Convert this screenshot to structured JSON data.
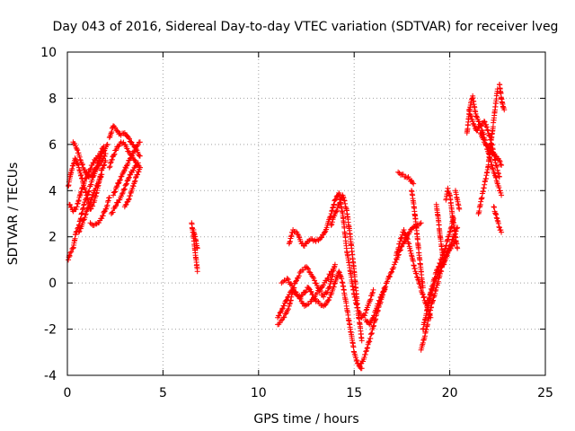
{
  "chart_data": {
    "type": "scatter",
    "title": "Day 043 of 2016, Sidereal Day-to-day VTEC variation (SDTVAR) for receiver lveg",
    "xlabel": "GPS time / hours",
    "ylabel": "SDTVAR / TECUs",
    "xlim": [
      0,
      25
    ],
    "ylim": [
      -4,
      10
    ],
    "xticks": [
      0,
      5,
      10,
      15,
      20,
      25
    ],
    "yticks": [
      -4,
      -2,
      0,
      2,
      4,
      6,
      8,
      10
    ],
    "xtick_labels": [
      "0",
      "5",
      "10",
      "15",
      "20",
      "25"
    ],
    "ytick_labels": [
      "-4",
      "-2",
      "0",
      "2",
      "4",
      "6",
      "8",
      "10"
    ],
    "grid": true,
    "marker": "+",
    "color": "#ff0000",
    "series": [
      {
        "name": "SDTVAR",
        "tracks": [
          {
            "x": [
              0.05,
              0.15,
              0.3,
              0.45,
              0.6,
              0.75,
              0.9,
              1.05,
              1.2,
              1.35,
              1.5,
              1.65,
              1.8,
              2.0
            ],
            "y": [
              1.0,
              1.3,
              1.5,
              2.2,
              2.5,
              3.0,
              3.5,
              3.8,
              4.2,
              4.6,
              4.9,
              5.1,
              5.3,
              5.6
            ]
          },
          {
            "x": [
              0.05,
              0.2,
              0.4,
              0.6,
              0.8,
              1.0,
              1.2,
              1.4,
              1.6,
              1.8,
              2.0
            ],
            "y": [
              4.2,
              4.8,
              5.4,
              5.0,
              4.4,
              3.8,
              3.2,
              3.5,
              4.2,
              4.9,
              5.3
            ]
          },
          {
            "x": [
              0.3,
              0.5,
              0.7,
              0.9,
              1.1,
              1.3,
              1.5,
              1.7,
              1.9,
              2.1
            ],
            "y": [
              6.1,
              5.8,
              5.3,
              4.9,
              4.6,
              4.7,
              5.0,
              5.4,
              5.7,
              6.0
            ]
          },
          {
            "x": [
              0.1,
              0.3,
              0.5,
              0.7,
              0.9,
              1.1,
              1.3,
              1.5,
              1.7,
              1.9
            ],
            "y": [
              3.4,
              3.1,
              3.3,
              3.9,
              4.4,
              4.8,
              5.1,
              5.4,
              5.6,
              5.9
            ]
          },
          {
            "x": [
              0.6,
              0.8,
              1.0,
              1.2,
              1.4,
              1.6,
              1.8
            ],
            "y": [
              2.2,
              2.6,
              3.1,
              3.5,
              4.0,
              4.3,
              4.7
            ]
          },
          {
            "x": [
              1.2,
              1.4,
              1.6,
              1.8,
              2.0,
              2.2
            ],
            "y": [
              2.6,
              2.5,
              2.6,
              2.8,
              3.2,
              3.7
            ]
          },
          {
            "x": [
              2.2,
              2.4,
              2.6,
              2.8,
              3.0,
              3.2,
              3.4,
              3.6,
              3.8
            ],
            "y": [
              6.3,
              6.8,
              6.6,
              6.4,
              6.5,
              6.3,
              6.0,
              5.8,
              5.5
            ]
          },
          {
            "x": [
              2.2,
              2.4,
              2.6,
              2.8,
              3.0,
              3.2,
              3.4,
              3.6,
              3.8
            ],
            "y": [
              5.0,
              5.5,
              5.9,
              6.1,
              6.0,
              5.7,
              5.5,
              5.2,
              5.0
            ]
          },
          {
            "x": [
              2.3,
              2.5,
              2.7,
              2.9,
              3.1,
              3.3,
              3.5,
              3.7
            ],
            "y": [
              3.0,
              3.3,
              3.6,
              3.9,
              4.3,
              4.7,
              5.0,
              5.2
            ]
          },
          {
            "x": [
              2.4,
              2.6,
              2.8,
              3.0,
              3.2,
              3.4,
              3.6,
              3.8
            ],
            "y": [
              3.8,
              4.2,
              4.6,
              4.9,
              5.3,
              5.6,
              5.9,
              6.1
            ]
          },
          {
            "x": [
              3.0,
              3.2,
              3.4,
              3.6,
              3.8
            ],
            "y": [
              3.3,
              3.6,
              4.1,
              4.6,
              5.0
            ]
          },
          {
            "x": [
              6.5,
              6.55,
              6.6,
              6.65,
              6.7,
              6.75,
              6.8
            ],
            "y": [
              2.6,
              2.3,
              2.0,
              1.6,
              1.2,
              0.9,
              0.5
            ]
          },
          {
            "x": [
              6.6,
              6.65,
              6.7,
              6.75,
              6.8
            ],
            "y": [
              2.3,
              2.1,
              1.9,
              1.7,
              1.5
            ]
          },
          {
            "x": [
              11.0,
              11.2,
              11.4,
              11.6,
              11.8,
              12.0,
              12.2,
              12.4,
              12.6,
              12.8,
              13.0,
              13.2,
              13.4,
              13.6,
              13.8,
              14.0,
              14.2,
              14.4,
              14.6,
              14.8,
              15.0,
              15.2,
              15.4
            ],
            "y": [
              -1.5,
              -1.2,
              -0.8,
              -0.5,
              -0.3,
              -0.5,
              -0.6,
              -0.4,
              -0.2,
              -0.5,
              -0.8,
              -0.9,
              -1.0,
              -0.8,
              -0.5,
              0.0,
              0.5,
              0.0,
              -1.0,
              -2.0,
              -3.0,
              -3.5,
              -3.7
            ]
          },
          {
            "x": [
              11.0,
              11.3,
              11.6,
              11.9,
              12.2,
              12.5,
              12.8,
              13.1,
              13.4,
              13.7,
              14.0
            ],
            "y": [
              -1.8,
              -1.5,
              -1.0,
              0.0,
              0.5,
              0.7,
              0.3,
              -0.2,
              -0.6,
              -0.2,
              0.8
            ]
          },
          {
            "x": [
              11.2,
              11.5,
              11.8,
              12.1,
              12.4,
              12.7,
              13.0,
              13.3,
              13.6,
              13.9
            ],
            "y": [
              0.0,
              0.2,
              -0.2,
              -0.6,
              -1.0,
              -0.8,
              -0.5,
              -0.2,
              0.2,
              0.6
            ]
          },
          {
            "x": [
              11.6,
              11.8,
              12.0,
              12.2,
              12.4,
              12.6,
              12.8,
              13.0,
              13.2,
              13.4,
              13.6,
              13.8,
              14.0,
              14.2,
              14.4,
              14.6,
              14.8,
              15.0,
              15.2,
              15.4,
              15.6,
              15.8,
              16.0
            ],
            "y": [
              1.7,
              2.3,
              2.2,
              1.8,
              1.6,
              1.8,
              1.9,
              1.8,
              1.9,
              2.1,
              2.5,
              3.0,
              3.6,
              3.9,
              3.0,
              1.5,
              0.5,
              -0.5,
              -1.2,
              -1.5,
              -1.3,
              -0.8,
              -0.3
            ]
          },
          {
            "x": [
              13.8,
              14.0,
              14.2,
              14.4,
              14.6,
              14.8,
              15.0,
              15.2,
              15.4
            ],
            "y": [
              2.5,
              3.0,
              3.4,
              3.8,
              3.2,
              2.0,
              0.5,
              -1.2,
              -2.5
            ]
          },
          {
            "x": [
              15.3,
              15.5,
              15.7,
              15.9,
              16.1,
              16.3,
              16.5,
              16.7,
              16.9,
              17.1,
              17.3,
              17.5,
              17.7,
              17.9,
              18.1,
              18.3,
              18.5
            ],
            "y": [
              -3.6,
              -3.3,
              -2.8,
              -2.2,
              -1.6,
              -1.0,
              -0.5,
              0.0,
              0.4,
              0.8,
              1.2,
              1.6,
              1.9,
              2.2,
              2.4,
              2.5,
              2.6
            ]
          },
          {
            "x": [
              15.6,
              15.8,
              16.0,
              16.2,
              16.4,
              16.6
            ],
            "y": [
              -1.6,
              -1.8,
              -1.5,
              -1.0,
              -0.6,
              -0.2
            ]
          },
          {
            "x": [
              17.3,
              17.5,
              17.7,
              17.9,
              18.1
            ],
            "y": [
              4.8,
              4.7,
              4.6,
              4.5,
              4.3
            ]
          },
          {
            "x": [
              17.2,
              17.4,
              17.6,
              17.8,
              18.0,
              18.2,
              18.4,
              18.6,
              18.8,
              19.0
            ],
            "y": [
              1.2,
              1.8,
              2.3,
              1.9,
              1.2,
              0.5,
              0.0,
              -0.5,
              -1.0,
              -1.5
            ]
          },
          {
            "x": [
              18.0,
              18.1,
              18.2,
              18.3,
              18.4,
              18.5,
              18.6
            ],
            "y": [
              4.0,
              3.5,
              2.8,
              2.0,
              1.2,
              0.5,
              -0.2
            ]
          },
          {
            "x": [
              18.5,
              18.7,
              18.9,
              19.1,
              19.3,
              19.5,
              19.7,
              19.9,
              20.1,
              20.3
            ],
            "y": [
              -2.9,
              -2.3,
              -1.5,
              -0.8,
              -0.2,
              0.4,
              0.9,
              1.3,
              1.6,
              1.8
            ]
          },
          {
            "x": [
              18.6,
              18.8,
              19.0,
              19.2,
              19.4,
              19.6,
              19.8,
              20.0,
              20.2
            ],
            "y": [
              -2.0,
              -1.2,
              -0.4,
              0.2,
              0.7,
              1.1,
              1.6,
              2.2,
              2.8
            ]
          },
          {
            "x": [
              18.8,
              19.0,
              19.2,
              19.4,
              19.6,
              19.8,
              20.0,
              20.2,
              20.4
            ],
            "y": [
              -1.2,
              -0.5,
              0.0,
              0.4,
              0.8,
              1.2,
              1.6,
              2.0,
              2.4
            ]
          },
          {
            "x": [
              19.3,
              19.4,
              19.5,
              19.6,
              19.7
            ],
            "y": [
              3.4,
              2.8,
              2.0,
              1.4,
              0.8
            ]
          },
          {
            "x": [
              19.8,
              19.9,
              20.0,
              20.1,
              20.2,
              20.3,
              20.4
            ],
            "y": [
              3.6,
              4.1,
              3.8,
              3.2,
              2.6,
              2.0,
              1.5
            ]
          },
          {
            "x": [
              20.3,
              20.4,
              20.5
            ],
            "y": [
              4.0,
              3.6,
              3.2
            ]
          },
          {
            "x": [
              20.9,
              21.0,
              21.1,
              21.2,
              21.3,
              21.4,
              21.5,
              21.6,
              21.7,
              21.8,
              21.9,
              22.0,
              22.1,
              22.2,
              22.3,
              22.4,
              22.5,
              22.6,
              22.7
            ],
            "y": [
              6.5,
              7.2,
              7.8,
              8.1,
              7.6,
              7.2,
              7.0,
              6.8,
              6.6,
              6.3,
              6.0,
              5.7,
              5.4,
              5.1,
              4.8,
              4.6,
              4.3,
              4.0,
              3.8
            ]
          },
          {
            "x": [
              21.0,
              21.2,
              21.4,
              21.6,
              21.8,
              22.0,
              22.2,
              22.4,
              22.6
            ],
            "y": [
              7.5,
              7.0,
              6.6,
              6.8,
              7.0,
              6.6,
              6.0,
              5.2,
              4.6
            ]
          },
          {
            "x": [
              21.6,
              21.8,
              22.0,
              22.2,
              22.4,
              22.6,
              22.7
            ],
            "y": [
              6.5,
              6.1,
              5.9,
              5.7,
              5.5,
              5.3,
              5.1
            ]
          },
          {
            "x": [
              22.3,
              22.4,
              22.5,
              22.6,
              22.7
            ],
            "y": [
              3.3,
              3.0,
              2.7,
              2.4,
              2.2
            ]
          },
          {
            "x": [
              22.6,
              22.65,
              22.7,
              22.75,
              22.8,
              22.85
            ],
            "y": [
              8.6,
              8.3,
              8.0,
              7.8,
              7.6,
              7.5
            ]
          },
          {
            "x": [
              21.5,
              22.0,
              22.5
            ],
            "y": [
              3.0,
              5.0,
              8.4
            ]
          }
        ]
      }
    ]
  }
}
